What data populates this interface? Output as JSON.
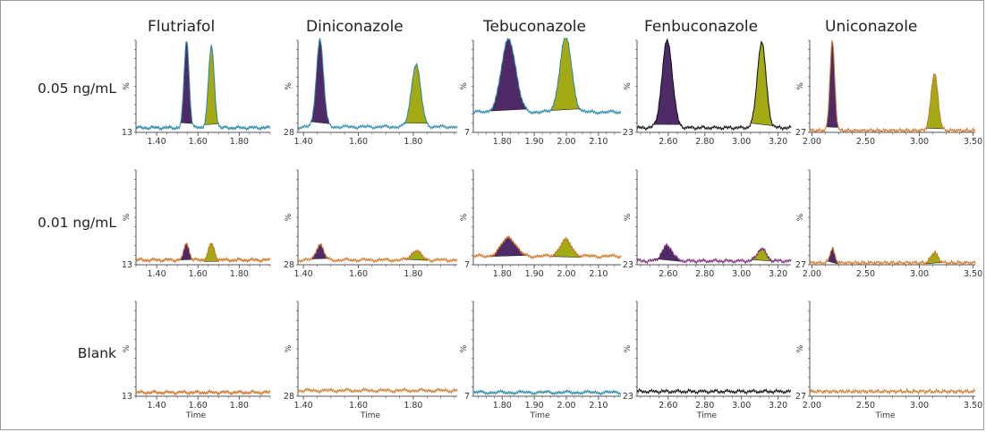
{
  "colors": {
    "peak1": "#4e2a66",
    "peak2": "#a3aa14",
    "trace_teal": "#2a8aaa",
    "trace_orange": "#d0782a",
    "trace_purple": "#7a2d7a",
    "trace_black": "#111111",
    "axis": "#555555"
  },
  "row_labels": [
    "0.05 ng/mL",
    "0.01 ng/mL",
    "Blank"
  ],
  "time_label": "Time",
  "y_axis_symbol": "%",
  "chart_data": [
    {
      "type": "line",
      "title": "Flutriafol",
      "xlim": [
        1.3,
        1.95
      ],
      "x_ticks": [
        1.4,
        1.6,
        1.8
      ],
      "x_tick_labels": [
        "1.40",
        "1.60",
        "1.80"
      ],
      "y_min_label": "13",
      "peaks": [
        {
          "rt": 1.545,
          "width": 0.012
        },
        {
          "rt": 1.665,
          "width": 0.014
        }
      ],
      "rows": [
        {
          "row": "0.05 ng/mL",
          "trace_color": "trace_teal",
          "heights": [
            0.95,
            0.88
          ],
          "baseline": 0.05
        },
        {
          "row": "0.01 ng/mL",
          "trace_color": "trace_orange",
          "heights": [
            0.18,
            0.17
          ],
          "baseline": 0.05
        },
        {
          "row": "Blank",
          "trace_color": "trace_orange",
          "heights": [
            0,
            0
          ],
          "baseline": 0.04
        }
      ]
    },
    {
      "type": "line",
      "title": "Diniconazole",
      "xlim": [
        1.38,
        1.96
      ],
      "x_ticks": [
        1.4,
        1.6,
        1.8
      ],
      "x_tick_labels": [
        "1.40",
        "1.60",
        "1.80"
      ],
      "y_min_label": "28",
      "peaks": [
        {
          "rt": 1.46,
          "width": 0.013
        },
        {
          "rt": 1.81,
          "width": 0.017
        }
      ],
      "rows": [
        {
          "row": "0.05 ng/mL",
          "trace_color": "trace_teal",
          "heights": [
            0.95,
            0.68
          ],
          "baseline": 0.06
        },
        {
          "row": "0.01 ng/mL",
          "trace_color": "trace_orange",
          "heights": [
            0.17,
            0.1
          ],
          "baseline": 0.05
        },
        {
          "row": "Blank",
          "trace_color": "trace_orange",
          "heights": [
            0,
            0
          ],
          "baseline": 0.06
        }
      ]
    },
    {
      "type": "line",
      "title": "Tebuconazole",
      "xlim": [
        1.71,
        2.17
      ],
      "x_ticks": [
        1.8,
        1.9,
        2.0,
        2.1
      ],
      "x_tick_labels": [
        "1.80",
        "1.90",
        "2.00",
        "2.10"
      ],
      "y_min_label": "7",
      "peaks": [
        {
          "rt": 1.82,
          "width": 0.022
        },
        {
          "rt": 1.998,
          "width": 0.018
        }
      ],
      "rows": [
        {
          "row": "0.05 ng/mL",
          "trace_color": "trace_teal",
          "heights": [
            0.8,
            0.82
          ],
          "baseline": 0.22
        },
        {
          "row": "0.01 ng/mL",
          "trace_color": "trace_orange",
          "heights": [
            0.2,
            0.17
          ],
          "baseline": 0.09
        },
        {
          "row": "Blank",
          "trace_color": "trace_teal",
          "heights": [
            0,
            0
          ],
          "baseline": 0.04
        }
      ]
    },
    {
      "type": "line",
      "title": "Fenbuconazole",
      "xlim": [
        2.43,
        3.27
      ],
      "x_ticks": [
        2.6,
        2.8,
        3.0,
        3.2
      ],
      "x_tick_labels": [
        "2.60",
        "2.80",
        "3.00",
        "3.20"
      ],
      "y_min_label": "23",
      "peaks": [
        {
          "rt": 2.595,
          "width": 0.028
        },
        {
          "rt": 3.11,
          "width": 0.024
        }
      ],
      "rows": [
        {
          "row": "0.05 ng/mL",
          "trace_color": "trace_black",
          "heights": [
            0.95,
            0.93
          ],
          "baseline": 0.05
        },
        {
          "row": "0.01 ng/mL",
          "trace_color": "trace_purple",
          "heights": [
            0.16,
            0.13
          ],
          "baseline": 0.04
        },
        {
          "row": "Blank",
          "trace_color": "trace_black",
          "heights": [
            0,
            0
          ],
          "baseline": 0.05
        }
      ]
    },
    {
      "type": "line",
      "title": "Uniconazole",
      "xlim": [
        1.98,
        3.52
      ],
      "x_ticks": [
        2.0,
        2.5,
        3.0,
        3.5
      ],
      "x_tick_labels": [
        "2.00",
        "2.50",
        "3.00",
        "3.50"
      ],
      "y_min_label": "27",
      "peaks": [
        {
          "rt": 2.19,
          "width": 0.022
        },
        {
          "rt": 3.14,
          "width": 0.032
        }
      ],
      "rows": [
        {
          "row": "0.05 ng/mL",
          "trace_color": "trace_orange",
          "heights": [
            0.97,
            0.62
          ],
          "baseline": 0.02
        },
        {
          "row": "0.01 ng/mL",
          "trace_color": "trace_orange",
          "heights": [
            0.15,
            0.11
          ],
          "baseline": 0.02
        },
        {
          "row": "Blank",
          "trace_color": "trace_orange",
          "heights": [
            0,
            0
          ],
          "baseline": 0.05
        }
      ]
    }
  ]
}
